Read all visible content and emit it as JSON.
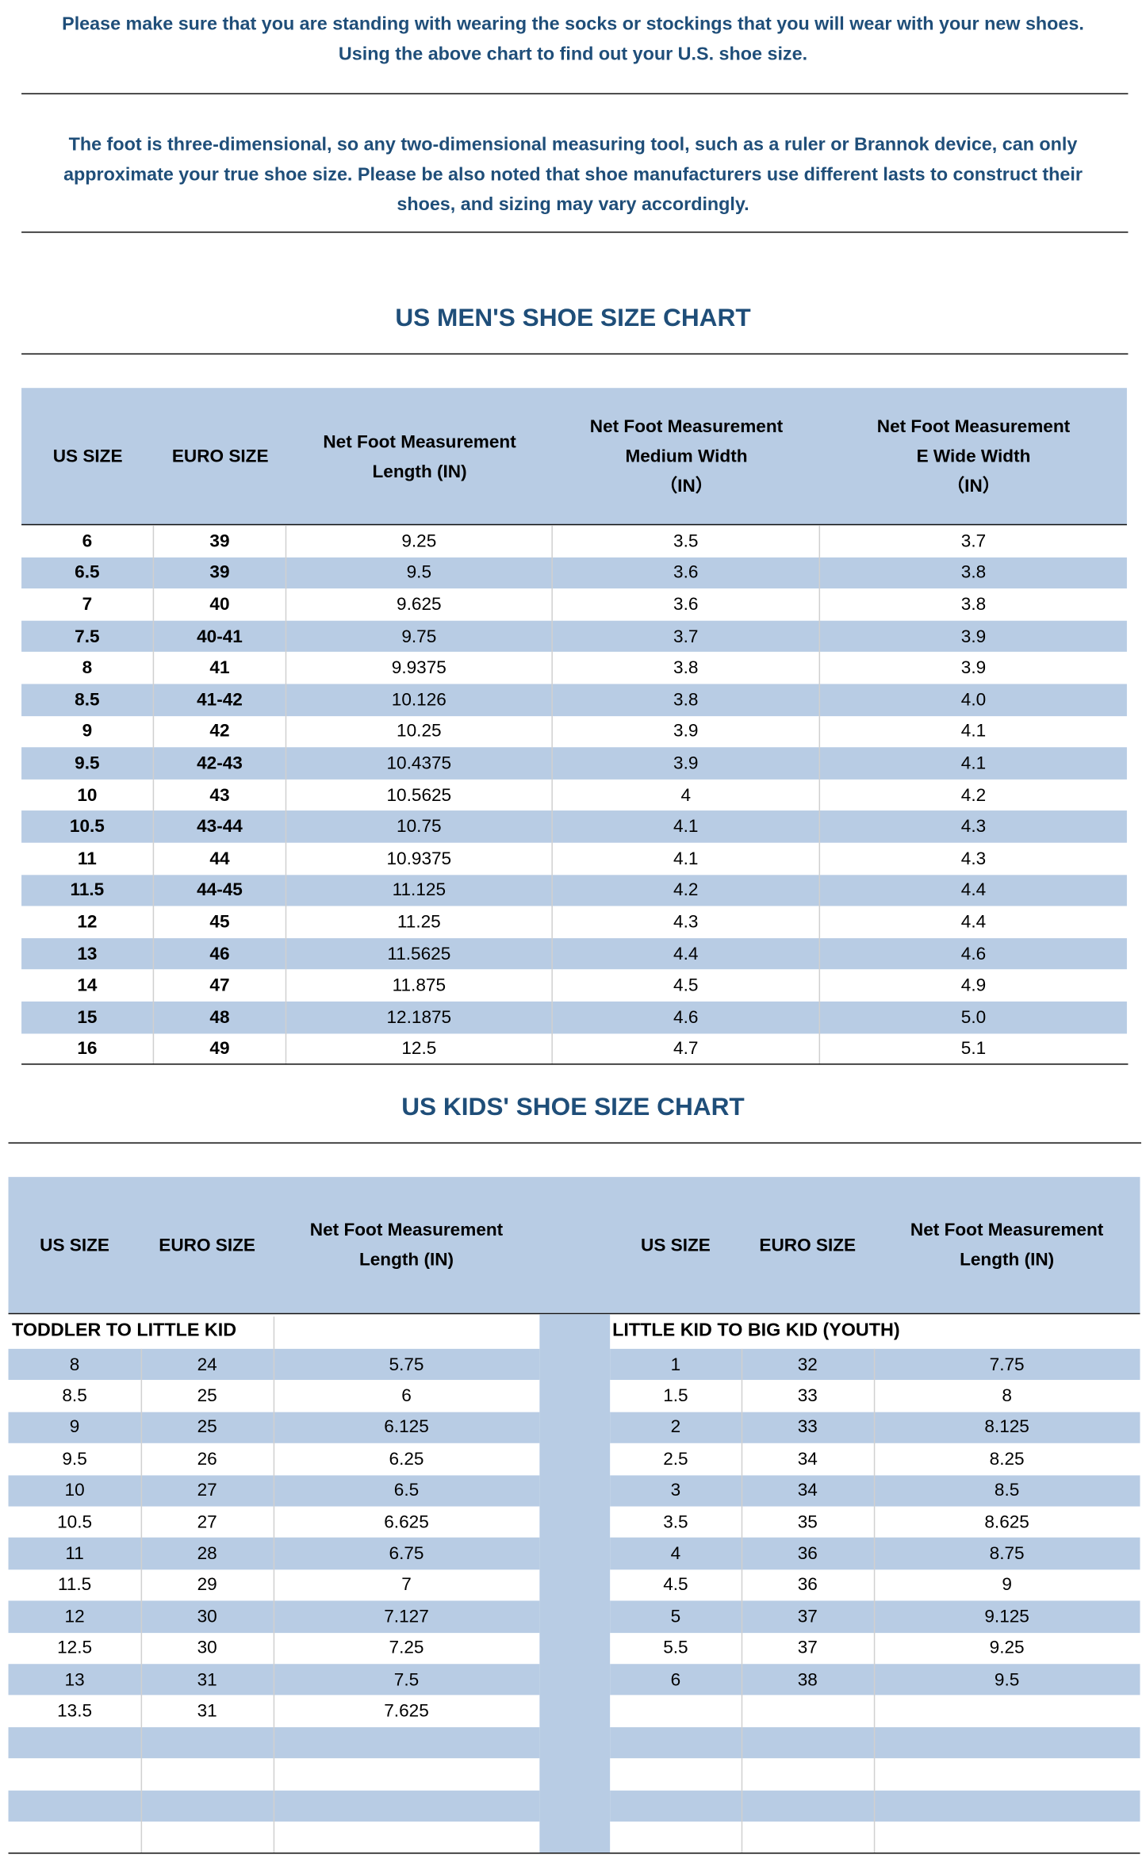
{
  "notes": [
    [
      "Please make sure that you are standing with wearing the socks or stockings that you will wear with your new shoes.",
      "Using the above chart to find out your U.S. shoe size."
    ],
    [
      "The foot is three-dimensional, so any two-dimensional measuring tool, such as a ruler or Brannok device, can only",
      "approximate your true shoe size. Please be also noted that shoe manufacturers use different lasts to construct their",
      "shoes, and sizing may vary accordingly."
    ]
  ],
  "mens": {
    "title": "US MEN'S SHOE SIZE CHART",
    "headers": [
      [
        "US SIZE"
      ],
      [
        "EURO SIZE"
      ],
      [
        "Net Foot Measurement",
        "Length (IN)"
      ],
      [
        "Net Foot Measurement",
        "Medium Width",
        "（IN）"
      ],
      [
        "Net Foot Measurement",
        "E Wide Width",
        "（IN）"
      ]
    ],
    "rows": [
      [
        "6",
        "39",
        "9.25",
        "3.5",
        "3.7"
      ],
      [
        "6.5",
        "39",
        "9.5",
        "3.6",
        "3.8"
      ],
      [
        "7",
        "40",
        "9.625",
        "3.6",
        "3.8"
      ],
      [
        "7.5",
        "40-41",
        "9.75",
        "3.7",
        "3.9"
      ],
      [
        "8",
        "41",
        "9.9375",
        "3.8",
        "3.9"
      ],
      [
        "8.5",
        "41-42",
        "10.126",
        "3.8",
        "4.0"
      ],
      [
        "9",
        "42",
        "10.25",
        "3.9",
        "4.1"
      ],
      [
        "9.5",
        "42-43",
        "10.4375",
        "3.9",
        "4.1"
      ],
      [
        "10",
        "43",
        "10.5625",
        "4",
        "4.2"
      ],
      [
        "10.5",
        "43-44",
        "10.75",
        "4.1",
        "4.3"
      ],
      [
        "11",
        "44",
        "10.9375",
        "4.1",
        "4.3"
      ],
      [
        "11.5",
        "44-45",
        "11.125",
        "4.2",
        "4.4"
      ],
      [
        "12",
        "45",
        "11.25",
        "4.3",
        "4.4"
      ],
      [
        "13",
        "46",
        "11.5625",
        "4.4",
        "4.6"
      ],
      [
        "14",
        "47",
        "11.875",
        "4.5",
        "4.9"
      ],
      [
        "15",
        "48",
        "12.1875",
        "4.6",
        "5.0"
      ],
      [
        "16",
        "49",
        "12.5",
        "4.7",
        "5.1"
      ]
    ]
  },
  "kids": {
    "title": "US KIDS' SHOE SIZE CHART",
    "headers": [
      [
        "US SIZE"
      ],
      [
        "EURO SIZE"
      ],
      [
        "Net Foot Measurement",
        "Length (IN)"
      ],
      [
        "US SIZE"
      ],
      [
        "EURO SIZE"
      ],
      [
        "Net Foot Measurement",
        "Length (IN)"
      ]
    ],
    "sections": [
      "TODDLER TO LITTLE KID",
      "LITTLE KID TO BIG KID (YOUTH)"
    ],
    "left_rows": [
      [
        "8",
        "24",
        "5.75"
      ],
      [
        "8.5",
        "25",
        "6"
      ],
      [
        "9",
        "25",
        "6.125"
      ],
      [
        "9.5",
        "26",
        "6.25"
      ],
      [
        "10",
        "27",
        "6.5"
      ],
      [
        "10.5",
        "27",
        "6.625"
      ],
      [
        "11",
        "28",
        "6.75"
      ],
      [
        "11.5",
        "29",
        "7"
      ],
      [
        "12",
        "30",
        "7.127"
      ],
      [
        "12.5",
        "30",
        "7.25"
      ],
      [
        "13",
        "31",
        "7.5"
      ],
      [
        "13.5",
        "31",
        "7.625"
      ]
    ],
    "right_rows": [
      [
        "1",
        "32",
        "7.75"
      ],
      [
        "1.5",
        "33",
        "8"
      ],
      [
        "2",
        "33",
        "8.125"
      ],
      [
        "2.5",
        "34",
        "8.25"
      ],
      [
        "3",
        "34",
        "8.5"
      ],
      [
        "3.5",
        "35",
        "8.625"
      ],
      [
        "4",
        "36",
        "8.75"
      ],
      [
        "4.5",
        "36",
        "9"
      ],
      [
        "5",
        "37",
        "9.125"
      ],
      [
        "5.5",
        "37",
        "9.25"
      ],
      [
        "6",
        "38",
        "9.5"
      ]
    ]
  }
}
